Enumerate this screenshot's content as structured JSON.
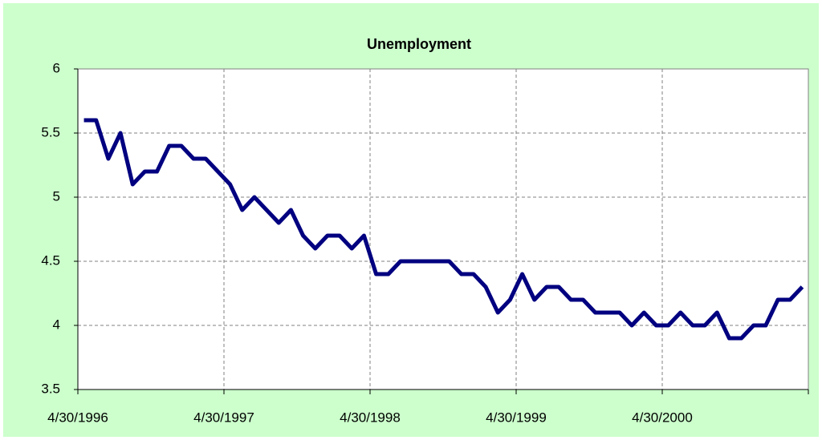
{
  "chart_data": {
    "type": "line",
    "title": "Unemployment",
    "x": [
      "4/30/1996",
      "5/31/1996",
      "6/30/1996",
      "7/31/1996",
      "8/31/1996",
      "9/30/1996",
      "10/31/1996",
      "11/30/1996",
      "12/31/1996",
      "1/31/1997",
      "2/28/1997",
      "3/31/1997",
      "4/30/1997",
      "5/31/1997",
      "6/30/1997",
      "7/31/1997",
      "8/31/1997",
      "9/30/1997",
      "10/31/1997",
      "11/30/1997",
      "12/31/1997",
      "1/31/1998",
      "2/28/1998",
      "3/31/1998",
      "4/30/1998",
      "5/31/1998",
      "6/30/1998",
      "7/31/1998",
      "8/31/1998",
      "9/30/1998",
      "10/31/1998",
      "11/30/1998",
      "12/31/1998",
      "1/31/1999",
      "2/28/1999",
      "3/31/1999",
      "4/30/1999",
      "5/31/1999",
      "6/30/1999",
      "7/31/1999",
      "8/31/1999",
      "9/30/1999",
      "10/31/1999",
      "11/30/1999",
      "12/31/1999",
      "1/31/2000",
      "2/29/2000",
      "3/31/2000",
      "4/30/2000",
      "5/31/2000",
      "6/30/2000",
      "7/31/2000",
      "8/31/2000",
      "9/30/2000",
      "10/31/2000",
      "11/30/2000",
      "12/31/2000",
      "1/31/2001",
      "2/28/2001",
      "3/31/2001"
    ],
    "values": [
      5.6,
      5.6,
      5.3,
      5.5,
      5.1,
      5.2,
      5.2,
      5.4,
      5.4,
      5.3,
      5.3,
      5.2,
      5.1,
      4.9,
      5.0,
      4.9,
      4.8,
      4.9,
      4.7,
      4.6,
      4.7,
      4.7,
      4.6,
      4.7,
      4.4,
      4.4,
      4.5,
      4.5,
      4.5,
      4.5,
      4.5,
      4.4,
      4.4,
      4.3,
      4.1,
      4.2,
      4.4,
      4.2,
      4.3,
      4.3,
      4.2,
      4.2,
      4.1,
      4.1,
      4.1,
      4.0,
      4.1,
      4.0,
      4.0,
      4.1,
      4.0,
      4.0,
      4.1,
      3.9,
      3.9,
      4.0,
      4.0,
      4.2,
      4.2,
      4.3
    ],
    "color": "#000080",
    "xlim": [
      "4/30/1996",
      "4/30/2001"
    ],
    "xticks": [
      "4/30/1996",
      "4/30/1997",
      "4/30/1998",
      "4/30/1999",
      "4/30/2000"
    ],
    "ylim": [
      3.5,
      6
    ],
    "yticks": [
      3.5,
      4,
      4.5,
      5,
      5.5,
      6
    ],
    "grid": true
  }
}
